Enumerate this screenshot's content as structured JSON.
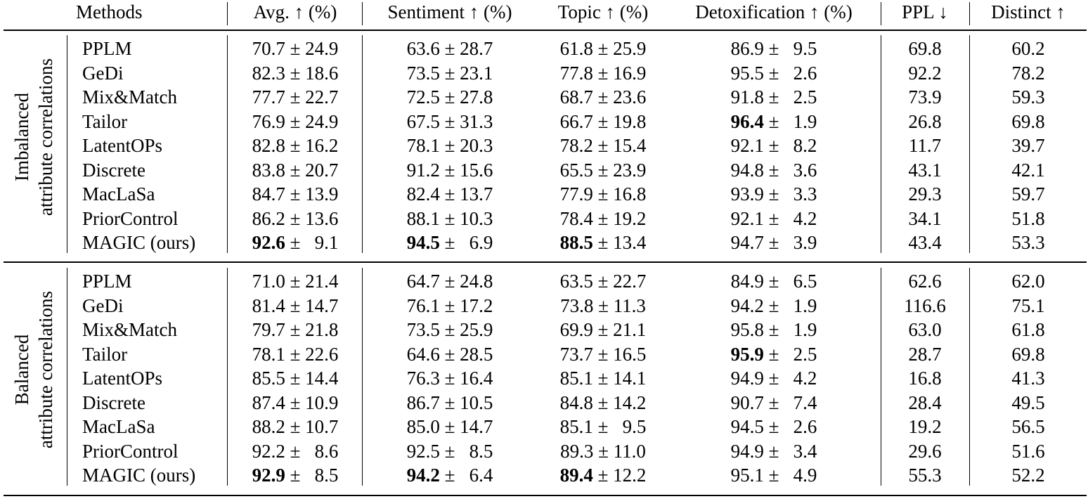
{
  "table": {
    "headers": {
      "methods": "Methods",
      "avg": "Avg. ↑ (%)",
      "sentiment": "Sentiment ↑ (%)",
      "topic": "Topic ↑ (%)",
      "detox": "Detoxification ↑ (%)",
      "ppl": "PPL ↓",
      "distinct": "Distinct ↑"
    },
    "groups": [
      {
        "label_line1": "Imbalanced",
        "label_line2": "attribute correlations",
        "rows": [
          {
            "method": "PPLM",
            "avg_mean": "70.7",
            "avg_sd": "24.9",
            "sent_mean": "63.6",
            "sent_sd": "28.7",
            "topic_mean": "61.8",
            "topic_sd": "25.9",
            "detox_mean": "86.9",
            "detox_sd": "9.5",
            "ppl": "69.8",
            "distinct": "60.2",
            "bold": []
          },
          {
            "method": "GeDi",
            "avg_mean": "82.3",
            "avg_sd": "18.6",
            "sent_mean": "73.5",
            "sent_sd": "23.1",
            "topic_mean": "77.8",
            "topic_sd": "16.9",
            "detox_mean": "95.5",
            "detox_sd": "2.6",
            "ppl": "92.2",
            "distinct": "78.2",
            "bold": []
          },
          {
            "method": "Mix&Match",
            "avg_mean": "77.7",
            "avg_sd": "22.7",
            "sent_mean": "72.5",
            "sent_sd": "27.8",
            "topic_mean": "68.7",
            "topic_sd": "23.6",
            "detox_mean": "91.8",
            "detox_sd": "2.5",
            "ppl": "73.9",
            "distinct": "59.3",
            "bold": []
          },
          {
            "method": "Tailor",
            "avg_mean": "76.9",
            "avg_sd": "24.9",
            "sent_mean": "67.5",
            "sent_sd": "31.3",
            "topic_mean": "66.7",
            "topic_sd": "19.8",
            "detox_mean": "96.4",
            "detox_sd": "1.9",
            "ppl": "26.8",
            "distinct": "69.8",
            "bold": [
              "detox"
            ]
          },
          {
            "method": "LatentOPs",
            "avg_mean": "82.8",
            "avg_sd": "16.2",
            "sent_mean": "78.1",
            "sent_sd": "20.3",
            "topic_mean": "78.2",
            "topic_sd": "15.4",
            "detox_mean": "92.1",
            "detox_sd": "8.2",
            "ppl": "11.7",
            "distinct": "39.7",
            "bold": []
          },
          {
            "method": "Discrete",
            "avg_mean": "83.8",
            "avg_sd": "20.7",
            "sent_mean": "91.2",
            "sent_sd": "15.6",
            "topic_mean": "65.5",
            "topic_sd": "23.9",
            "detox_mean": "94.8",
            "detox_sd": "3.6",
            "ppl": "43.1",
            "distinct": "42.1",
            "bold": []
          },
          {
            "method": "MacLaSa",
            "avg_mean": "84.7",
            "avg_sd": "13.9",
            "sent_mean": "82.4",
            "sent_sd": "13.7",
            "topic_mean": "77.9",
            "topic_sd": "16.8",
            "detox_mean": "93.9",
            "detox_sd": "3.3",
            "ppl": "29.3",
            "distinct": "59.7",
            "bold": []
          },
          {
            "method": "PriorControl",
            "avg_mean": "86.2",
            "avg_sd": "13.6",
            "sent_mean": "88.1",
            "sent_sd": "10.3",
            "topic_mean": "78.4",
            "topic_sd": "19.2",
            "detox_mean": "92.1",
            "detox_sd": "4.2",
            "ppl": "34.1",
            "distinct": "51.8",
            "bold": []
          },
          {
            "method": "MAGIC (ours)",
            "avg_mean": "92.6",
            "avg_sd": "9.1",
            "sent_mean": "94.5",
            "sent_sd": "6.9",
            "topic_mean": "88.5",
            "topic_sd": "13.4",
            "detox_mean": "94.7",
            "detox_sd": "3.9",
            "ppl": "43.4",
            "distinct": "53.3",
            "bold": [
              "avg",
              "sent",
              "topic"
            ]
          }
        ]
      },
      {
        "label_line1": "Balanced",
        "label_line2": "attribute correlations",
        "rows": [
          {
            "method": "PPLM",
            "avg_mean": "71.0",
            "avg_sd": "21.4",
            "sent_mean": "64.7",
            "sent_sd": "24.8",
            "topic_mean": "63.5",
            "topic_sd": "22.7",
            "detox_mean": "84.9",
            "detox_sd": "6.5",
            "ppl": "62.6",
            "distinct": "62.0",
            "bold": []
          },
          {
            "method": "GeDi",
            "avg_mean": "81.4",
            "avg_sd": "14.7",
            "sent_mean": "76.1",
            "sent_sd": "17.2",
            "topic_mean": "73.8",
            "topic_sd": "11.3",
            "detox_mean": "94.2",
            "detox_sd": "1.9",
            "ppl": "116.6",
            "distinct": "75.1",
            "bold": []
          },
          {
            "method": "Mix&Match",
            "avg_mean": "79.7",
            "avg_sd": "21.8",
            "sent_mean": "73.5",
            "sent_sd": "25.9",
            "topic_mean": "69.9",
            "topic_sd": "21.1",
            "detox_mean": "95.8",
            "detox_sd": "1.9",
            "ppl": "63.0",
            "distinct": "61.8",
            "bold": []
          },
          {
            "method": "Tailor",
            "avg_mean": "78.1",
            "avg_sd": "22.6",
            "sent_mean": "64.6",
            "sent_sd": "28.5",
            "topic_mean": "73.7",
            "topic_sd": "16.5",
            "detox_mean": "95.9",
            "detox_sd": "2.5",
            "ppl": "28.7",
            "distinct": "69.8",
            "bold": [
              "detox"
            ]
          },
          {
            "method": "LatentOPs",
            "avg_mean": "85.5",
            "avg_sd": "14.4",
            "sent_mean": "76.3",
            "sent_sd": "16.4",
            "topic_mean": "85.1",
            "topic_sd": "14.1",
            "detox_mean": "94.9",
            "detox_sd": "4.2",
            "ppl": "16.8",
            "distinct": "41.3",
            "bold": []
          },
          {
            "method": "Discrete",
            "avg_mean": "87.4",
            "avg_sd": "10.9",
            "sent_mean": "86.7",
            "sent_sd": "10.5",
            "topic_mean": "84.8",
            "topic_sd": "14.2",
            "detox_mean": "90.7",
            "detox_sd": "7.4",
            "ppl": "28.4",
            "distinct": "49.5",
            "bold": []
          },
          {
            "method": "MacLaSa",
            "avg_mean": "88.2",
            "avg_sd": "10.7",
            "sent_mean": "85.0",
            "sent_sd": "14.7",
            "topic_mean": "85.1",
            "topic_sd": "9.5",
            "detox_mean": "94.5",
            "detox_sd": "2.6",
            "ppl": "19.2",
            "distinct": "56.5",
            "bold": []
          },
          {
            "method": "PriorControl",
            "avg_mean": "92.2",
            "avg_sd": "8.6",
            "sent_mean": "92.5",
            "sent_sd": "8.5",
            "topic_mean": "89.3",
            "topic_sd": "11.0",
            "detox_mean": "94.9",
            "detox_sd": "3.4",
            "ppl": "29.6",
            "distinct": "51.6",
            "bold": []
          },
          {
            "method": "MAGIC (ours)",
            "avg_mean": "92.9",
            "avg_sd": "8.5",
            "sent_mean": "94.2",
            "sent_sd": "6.4",
            "topic_mean": "89.4",
            "topic_sd": "12.2",
            "detox_mean": "95.1",
            "detox_sd": "4.9",
            "ppl": "55.3",
            "distinct": "52.2",
            "bold": [
              "avg",
              "sent",
              "topic"
            ]
          }
        ]
      }
    ]
  }
}
